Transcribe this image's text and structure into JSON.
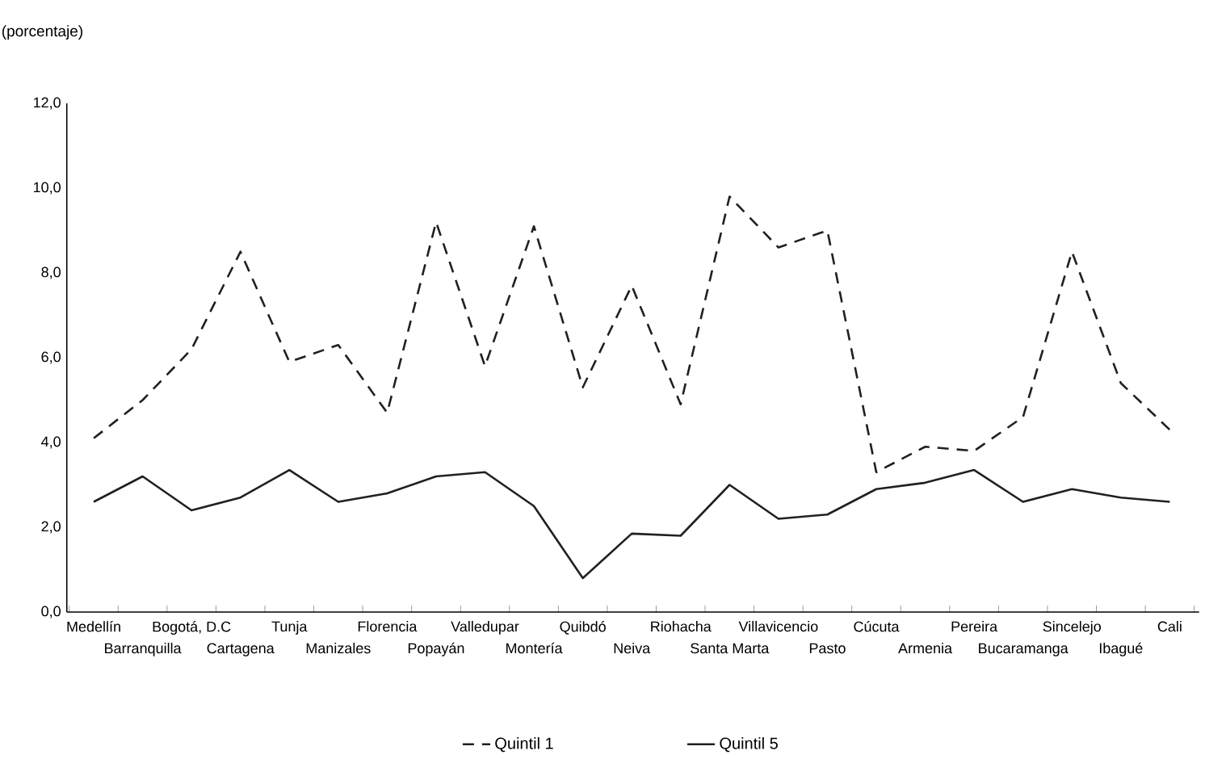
{
  "chart_data": {
    "type": "line",
    "ylabel": "(porcentaje)",
    "categories": [
      "Medellín",
      "Barranquilla",
      "Bogotá, D.C",
      "Cartagena",
      "Tunja",
      "Manizales",
      "Florencia",
      "Popayán",
      "Valledupar",
      "Montería",
      "Quibdó",
      "Neiva",
      "Riohacha",
      "Santa Marta",
      "Villavicencio",
      "Pasto",
      "Cúcuta",
      "Armenia",
      "Pereira",
      "Bucaramanga",
      "Sincelejo",
      "Ibagué",
      "Cali"
    ],
    "series": [
      {
        "name": "Quintil 1",
        "color": "#231f20",
        "line_style": "dashed",
        "values": [
          4.1,
          5.0,
          6.2,
          8.5,
          5.9,
          6.3,
          4.7,
          9.2,
          5.8,
          9.1,
          5.3,
          7.7,
          4.9,
          9.8,
          8.6,
          9.0,
          3.3,
          3.9,
          3.8,
          4.6,
          8.5,
          5.4,
          4.3
        ]
      },
      {
        "name": "Quintil 5",
        "color": "#231f20",
        "line_style": "solid",
        "values": [
          2.6,
          3.2,
          2.4,
          2.7,
          3.35,
          2.6,
          2.8,
          3.2,
          3.3,
          2.5,
          0.8,
          1.85,
          1.8,
          3.0,
          2.2,
          2.3,
          2.9,
          3.05,
          3.35,
          2.6,
          2.9,
          2.7,
          2.6
        ]
      }
    ],
    "ylim": [
      0,
      12
    ],
    "yticks": [
      {
        "value": 0,
        "label": "0,0"
      },
      {
        "value": 2,
        "label": "2,0"
      },
      {
        "value": 4,
        "label": "4,0"
      },
      {
        "value": 6,
        "label": "6,0"
      },
      {
        "value": 8,
        "label": "8,0"
      },
      {
        "value": 10,
        "label": "10,0"
      },
      {
        "value": 12,
        "label": "12,0"
      }
    ],
    "grid": false,
    "legend": "bottom",
    "marker": "none"
  }
}
